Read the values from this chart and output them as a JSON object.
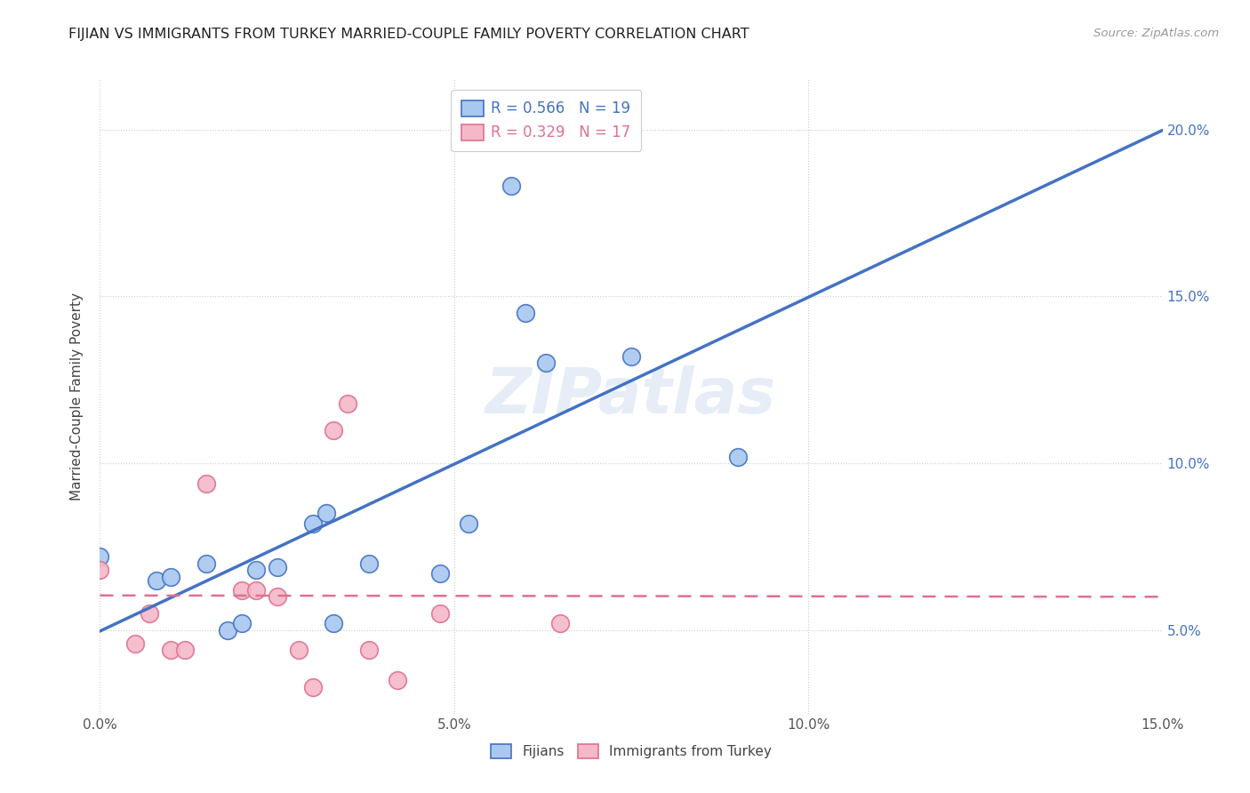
{
  "title": "FIJIAN VS IMMIGRANTS FROM TURKEY MARRIED-COUPLE FAMILY POVERTY CORRELATION CHART",
  "source": "Source: ZipAtlas.com",
  "ylabel_label": "Married-Couple Family Poverty",
  "legend_label1": "Fijians",
  "legend_label2": "Immigrants from Turkey",
  "R1": 0.566,
  "N1": 19,
  "R2": 0.329,
  "N2": 17,
  "xlim": [
    0.0,
    0.15
  ],
  "ylim": [
    0.025,
    0.215
  ],
  "blue_color": "#A8C8F0",
  "pink_color": "#F5B8C8",
  "blue_line_color": "#4472C4",
  "pink_line_color": "#E07090",
  "watermark": "ZIPatlas",
  "fijian_points": [
    [
      0.0,
      0.072
    ],
    [
      0.008,
      0.065
    ],
    [
      0.01,
      0.066
    ],
    [
      0.015,
      0.07
    ],
    [
      0.018,
      0.05
    ],
    [
      0.02,
      0.052
    ],
    [
      0.022,
      0.068
    ],
    [
      0.025,
      0.069
    ],
    [
      0.03,
      0.082
    ],
    [
      0.032,
      0.085
    ],
    [
      0.033,
      0.052
    ],
    [
      0.038,
      0.07
    ],
    [
      0.048,
      0.067
    ],
    [
      0.052,
      0.082
    ],
    [
      0.058,
      0.183
    ],
    [
      0.06,
      0.145
    ],
    [
      0.063,
      0.13
    ],
    [
      0.075,
      0.132
    ],
    [
      0.09,
      0.102
    ]
  ],
  "turkey_points": [
    [
      0.0,
      0.068
    ],
    [
      0.005,
      0.046
    ],
    [
      0.007,
      0.055
    ],
    [
      0.01,
      0.044
    ],
    [
      0.012,
      0.044
    ],
    [
      0.015,
      0.094
    ],
    [
      0.02,
      0.062
    ],
    [
      0.022,
      0.062
    ],
    [
      0.025,
      0.06
    ],
    [
      0.028,
      0.044
    ],
    [
      0.03,
      0.033
    ],
    [
      0.033,
      0.11
    ],
    [
      0.035,
      0.118
    ],
    [
      0.038,
      0.044
    ],
    [
      0.042,
      0.035
    ],
    [
      0.048,
      0.055
    ],
    [
      0.065,
      0.052
    ]
  ],
  "x_tick_positions": [
    0.0,
    0.05,
    0.1,
    0.15
  ],
  "x_tick_labels": [
    "0.0%",
    "5.0%",
    "10.0%",
    "15.0%"
  ],
  "y_tick_positions": [
    0.05,
    0.1,
    0.15,
    0.2
  ],
  "y_tick_labels": [
    "5.0%",
    "10.0%",
    "15.0%",
    "20.0%"
  ]
}
